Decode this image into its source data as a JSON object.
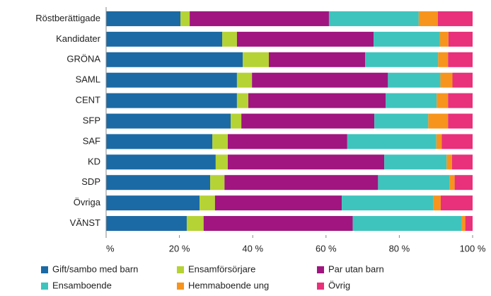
{
  "chart_data": {
    "type": "stacked_bar_horizontal",
    "categories": [
      "Röstberättigade",
      "Kandidater",
      "GRÖNA",
      "SAML",
      "CENT",
      "SFP",
      "SAF",
      "KD",
      "SDP",
      "Övriga",
      "VÄNST"
    ],
    "series": [
      {
        "name": "Gift/sambo med barn",
        "color": "#1b6aa5",
        "values": [
          20.3,
          31.7,
          37.3,
          35.7,
          35.7,
          34.0,
          29.0,
          29.9,
          28.4,
          25.5,
          22.0
        ]
      },
      {
        "name": "Ensamförsörjare",
        "color": "#b5d334",
        "values": [
          2.5,
          4.0,
          7.1,
          4.1,
          3.1,
          2.9,
          4.2,
          3.3,
          3.9,
          4.2,
          4.6
        ]
      },
      {
        "name": "Par utan barn",
        "color": "#a0157f",
        "values": [
          38.0,
          37.3,
          26.3,
          37.1,
          37.5,
          36.3,
          32.6,
          42.7,
          41.9,
          34.6,
          40.7
        ]
      },
      {
        "name": "Ensamboende",
        "color": "#3ec4bd",
        "values": [
          24.5,
          18.1,
          19.9,
          14.3,
          13.9,
          14.7,
          24.3,
          17.0,
          19.5,
          24.9,
          29.7
        ]
      },
      {
        "name": "Hemmaboende ung",
        "color": "#f7941d",
        "values": [
          5.2,
          2.3,
          2.7,
          3.3,
          3.1,
          5.4,
          1.5,
          1.5,
          1.4,
          2.1,
          1.0
        ]
      },
      {
        "name": "Övrig",
        "color": "#e8317a",
        "values": [
          9.5,
          6.6,
          6.7,
          5.5,
          6.7,
          6.7,
          8.4,
          5.6,
          4.9,
          8.7,
          2.0
        ]
      }
    ],
    "xlim": [
      0,
      100
    ],
    "xticks": [
      {
        "value": 0,
        "label": "%"
      },
      {
        "value": 20,
        "label": "20 %"
      },
      {
        "value": 40,
        "label": "40 %"
      },
      {
        "value": 60,
        "label": "60 %"
      },
      {
        "value": 80,
        "label": "80 %"
      },
      {
        "value": 100,
        "label": "100 %"
      }
    ]
  }
}
